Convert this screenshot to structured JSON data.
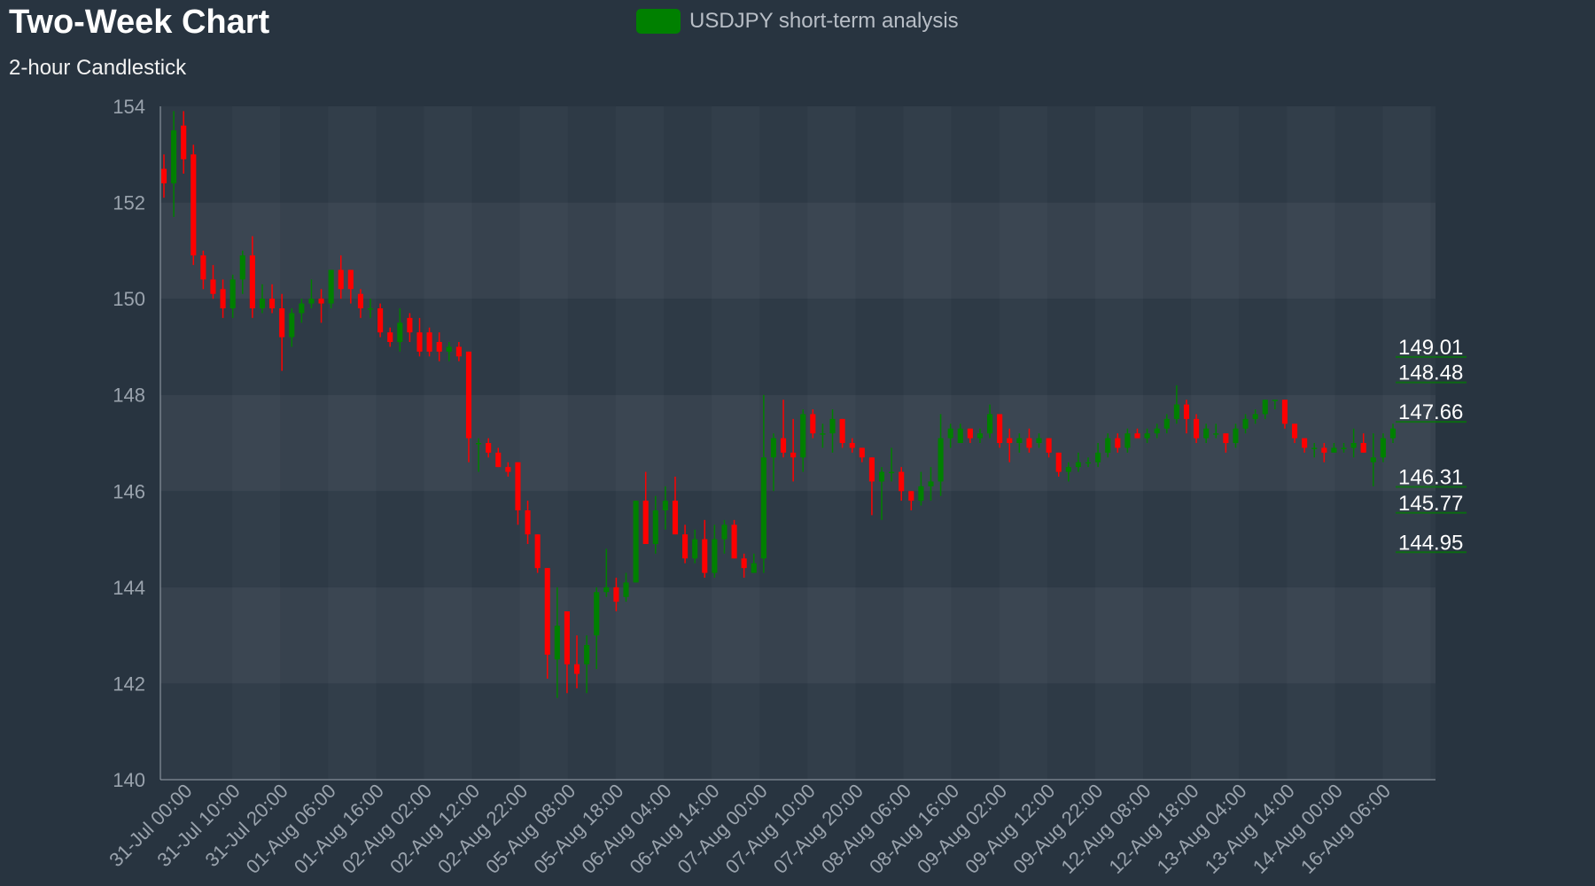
{
  "title": "Two-Week Chart",
  "subtitle": "2-hour Candlestick",
  "legend": {
    "label": "USDJPY short-term analysis",
    "color": "#008000"
  },
  "colors": {
    "up": "#008000",
    "down": "#ff0000"
  },
  "chart_data": {
    "type": "candlestick",
    "ylim": [
      140,
      154
    ],
    "yticks": [
      154,
      152,
      150,
      148,
      146,
      144,
      142,
      140
    ],
    "xtick_labels": [
      "31-Jul 00:00",
      "31-Jul 10:00",
      "31-Jul 20:00",
      "01-Aug 06:00",
      "01-Aug 16:00",
      "02-Aug 02:00",
      "02-Aug 12:00",
      "02-Aug 22:00",
      "05-Aug 08:00",
      "05-Aug 18:00",
      "06-Aug 04:00",
      "06-Aug 14:00",
      "07-Aug 00:00",
      "07-Aug 10:00",
      "07-Aug 20:00",
      "08-Aug 06:00",
      "08-Aug 16:00",
      "09-Aug 02:00",
      "09-Aug 12:00",
      "09-Aug 22:00",
      "12-Aug 08:00",
      "12-Aug 18:00",
      "13-Aug 04:00",
      "13-Aug 14:00",
      "14-Aug 00:00",
      "16-Aug 06:00"
    ],
    "price_levels": [
      {
        "value": 149.01,
        "label": "149.01"
      },
      {
        "value": 148.48,
        "label": "148.48"
      },
      {
        "value": 147.66,
        "label": "147.66"
      },
      {
        "value": 146.31,
        "label": "146.31"
      },
      {
        "value": 145.77,
        "label": "145.77"
      },
      {
        "value": 144.95,
        "label": "144.95"
      }
    ],
    "candles": [
      [
        152.7,
        153.0,
        152.1,
        152.4
      ],
      [
        152.4,
        153.9,
        151.7,
        153.5
      ],
      [
        153.6,
        153.9,
        152.6,
        152.9
      ],
      [
        153.0,
        153.2,
        150.7,
        150.9
      ],
      [
        150.9,
        151.0,
        150.2,
        150.4
      ],
      [
        150.4,
        150.7,
        150.0,
        150.1
      ],
      [
        150.2,
        150.4,
        149.6,
        149.8
      ],
      [
        149.8,
        150.5,
        149.6,
        150.4
      ],
      [
        150.4,
        151.0,
        150.1,
        150.9
      ],
      [
        150.9,
        151.3,
        149.6,
        149.8
      ],
      [
        149.8,
        150.3,
        149.7,
        150.0
      ],
      [
        150.0,
        150.3,
        149.7,
        149.8
      ],
      [
        149.8,
        150.1,
        148.5,
        149.2
      ],
      [
        149.2,
        149.8,
        149.0,
        149.7
      ],
      [
        149.7,
        150.0,
        149.5,
        149.9
      ],
      [
        149.9,
        150.4,
        149.8,
        150.0
      ],
      [
        150.0,
        150.2,
        149.5,
        149.9
      ],
      [
        149.9,
        150.6,
        149.8,
        150.6
      ],
      [
        150.6,
        150.9,
        150.0,
        150.2
      ],
      [
        150.6,
        150.6,
        149.9,
        150.2
      ],
      [
        150.1,
        150.2,
        149.6,
        149.8
      ],
      [
        149.8,
        150.0,
        149.6,
        149.8
      ],
      [
        149.8,
        149.9,
        149.2,
        149.3
      ],
      [
        149.3,
        149.4,
        149.0,
        149.1
      ],
      [
        149.1,
        149.8,
        148.9,
        149.5
      ],
      [
        149.6,
        149.7,
        149.1,
        149.3
      ],
      [
        149.3,
        149.6,
        148.8,
        148.9
      ],
      [
        149.3,
        149.4,
        148.8,
        148.9
      ],
      [
        149.1,
        149.3,
        148.7,
        148.9
      ],
      [
        148.9,
        149.1,
        148.7,
        149.0
      ],
      [
        149.0,
        149.1,
        148.7,
        148.8
      ],
      [
        148.9,
        148.9,
        146.6,
        147.1
      ],
      [
        147.0,
        147.1,
        146.4,
        147.0
      ],
      [
        147.0,
        147.1,
        146.7,
        146.8
      ],
      [
        146.8,
        146.9,
        146.5,
        146.5
      ],
      [
        146.5,
        146.6,
        146.3,
        146.4
      ],
      [
        146.6,
        146.6,
        145.3,
        145.6
      ],
      [
        145.6,
        145.8,
        144.9,
        145.1
      ],
      [
        145.1,
        145.1,
        144.3,
        144.4
      ],
      [
        144.4,
        144.4,
        142.1,
        142.6
      ],
      [
        142.5,
        144.0,
        141.7,
        143.2
      ],
      [
        143.5,
        143.5,
        141.8,
        142.4
      ],
      [
        142.4,
        143.0,
        141.9,
        142.2
      ],
      [
        142.4,
        143.0,
        141.8,
        142.8
      ],
      [
        143.0,
        144.0,
        142.3,
        143.9
      ],
      [
        143.9,
        144.8,
        143.8,
        144.0
      ],
      [
        144.0,
        144.2,
        143.5,
        143.7
      ],
      [
        143.8,
        144.3,
        143.7,
        144.1
      ],
      [
        144.1,
        145.8,
        144.1,
        145.8
      ],
      [
        145.8,
        146.4,
        144.9,
        144.9
      ],
      [
        144.9,
        145.9,
        144.7,
        145.6
      ],
      [
        145.6,
        146.1,
        145.2,
        145.8
      ],
      [
        145.8,
        146.3,
        145.1,
        145.1
      ],
      [
        145.1,
        145.3,
        144.5,
        144.6
      ],
      [
        144.6,
        145.2,
        144.5,
        145.0
      ],
      [
        145.0,
        145.4,
        144.2,
        144.3
      ],
      [
        144.3,
        145.3,
        144.2,
        145.0
      ],
      [
        145.0,
        145.4,
        144.7,
        145.3
      ],
      [
        145.3,
        145.4,
        144.6,
        144.6
      ],
      [
        144.6,
        144.7,
        144.2,
        144.4
      ],
      [
        144.3,
        144.7,
        144.3,
        144.5
      ],
      [
        144.6,
        148.0,
        144.3,
        146.7
      ],
      [
        146.7,
        147.2,
        146.0,
        147.1
      ],
      [
        147.1,
        147.9,
        146.7,
        146.8
      ],
      [
        146.8,
        147.5,
        146.2,
        146.7
      ],
      [
        146.7,
        147.7,
        146.4,
        147.6
      ],
      [
        147.6,
        147.7,
        147.1,
        147.2
      ],
      [
        147.2,
        147.4,
        146.9,
        147.2
      ],
      [
        147.2,
        147.7,
        146.8,
        147.5
      ],
      [
        147.5,
        147.5,
        146.9,
        147.0
      ],
      [
        147.0,
        147.1,
        146.8,
        146.9
      ],
      [
        146.9,
        146.9,
        146.6,
        146.7
      ],
      [
        146.7,
        146.7,
        145.5,
        146.2
      ],
      [
        146.2,
        146.5,
        145.4,
        146.4
      ],
      [
        146.4,
        146.9,
        146.2,
        146.4
      ],
      [
        146.4,
        146.5,
        145.8,
        146.0
      ],
      [
        146.0,
        146.0,
        145.6,
        145.8
      ],
      [
        145.8,
        146.4,
        145.7,
        146.1
      ],
      [
        146.1,
        146.5,
        145.8,
        146.2
      ],
      [
        146.2,
        147.6,
        145.9,
        147.1
      ],
      [
        147.1,
        147.4,
        146.9,
        147.3
      ],
      [
        147.0,
        147.4,
        147.0,
        147.3
      ],
      [
        147.3,
        147.3,
        147.0,
        147.1
      ],
      [
        147.1,
        147.3,
        147.0,
        147.2
      ],
      [
        147.2,
        147.8,
        147.1,
        147.6
      ],
      [
        147.6,
        147.6,
        146.9,
        147.0
      ],
      [
        147.1,
        147.3,
        146.6,
        147.0
      ],
      [
        147.0,
        147.2,
        146.8,
        147.1
      ],
      [
        147.1,
        147.3,
        146.8,
        146.9
      ],
      [
        147.0,
        147.2,
        146.9,
        147.1
      ],
      [
        147.1,
        147.1,
        146.7,
        146.8
      ],
      [
        146.8,
        146.8,
        146.3,
        146.4
      ],
      [
        146.4,
        146.6,
        146.2,
        146.5
      ],
      [
        146.5,
        146.8,
        146.4,
        146.6
      ],
      [
        146.6,
        146.7,
        146.5,
        146.6
      ],
      [
        146.6,
        147.0,
        146.5,
        146.8
      ],
      [
        146.8,
        147.2,
        146.7,
        147.1
      ],
      [
        147.1,
        147.2,
        146.8,
        146.9
      ],
      [
        146.9,
        147.3,
        146.8,
        147.2
      ],
      [
        147.2,
        147.3,
        147.1,
        147.1
      ],
      [
        147.1,
        147.3,
        147.0,
        147.2
      ],
      [
        147.2,
        147.4,
        147.1,
        147.3
      ],
      [
        147.3,
        147.6,
        147.2,
        147.5
      ],
      [
        147.5,
        148.2,
        147.4,
        147.8
      ],
      [
        147.8,
        147.9,
        147.2,
        147.5
      ],
      [
        147.5,
        147.6,
        147.0,
        147.1
      ],
      [
        147.1,
        147.4,
        147.0,
        147.3
      ],
      [
        147.2,
        147.4,
        147.1,
        147.2
      ],
      [
        147.2,
        147.2,
        146.8,
        147.0
      ],
      [
        147.0,
        147.4,
        146.9,
        147.3
      ],
      [
        147.3,
        147.6,
        147.2,
        147.5
      ],
      [
        147.5,
        147.7,
        147.4,
        147.6
      ],
      [
        147.6,
        147.9,
        147.5,
        147.9
      ],
      [
        147.9,
        147.9,
        147.7,
        147.9
      ],
      [
        147.9,
        147.9,
        147.3,
        147.4
      ],
      [
        147.4,
        147.4,
        147.0,
        147.1
      ],
      [
        147.1,
        147.1,
        146.8,
        146.9
      ],
      [
        146.9,
        147.0,
        146.7,
        146.9
      ],
      [
        146.9,
        147.0,
        146.6,
        146.8
      ],
      [
        146.8,
        147.0,
        146.8,
        146.9
      ],
      [
        146.9,
        147.0,
        146.8,
        146.9
      ],
      [
        146.9,
        147.3,
        146.7,
        147.0
      ],
      [
        147.0,
        147.2,
        146.8,
        146.8
      ],
      [
        146.6,
        147.2,
        146.1,
        146.7
      ],
      [
        146.7,
        147.2,
        146.6,
        147.1
      ],
      [
        147.1,
        147.4,
        147.0,
        147.3
      ]
    ]
  }
}
